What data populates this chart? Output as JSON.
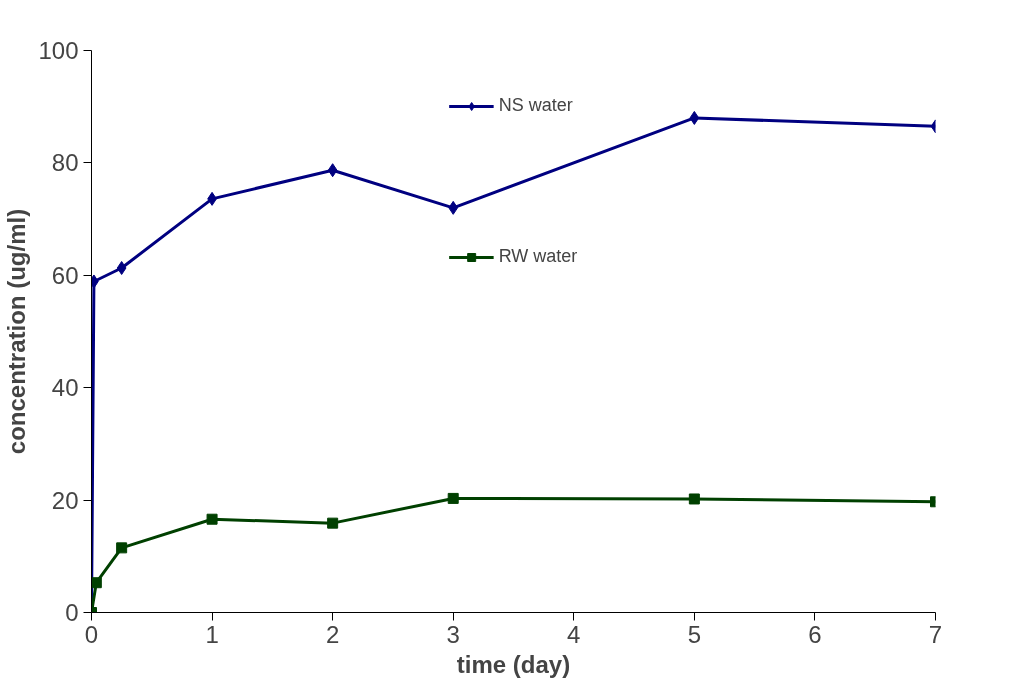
{
  "chart_data": {
    "type": "line",
    "xlabel": "time (day)",
    "ylabel": "concentration (ug/ml)",
    "xlim": [
      0,
      7
    ],
    "ylim": [
      0,
      100
    ],
    "xticks": [
      0,
      1,
      2,
      3,
      4,
      5,
      6,
      7
    ],
    "yticks": [
      0,
      20,
      40,
      60,
      80,
      100
    ],
    "grid": false,
    "legend": "top",
    "line_style": "solid",
    "series": [
      {
        "name": "NS water",
        "color": "#000080",
        "marker": "diamond",
        "x": [
          0,
          0.02,
          0.25,
          1,
          2,
          3,
          5,
          7
        ],
        "values": [
          0,
          58.9,
          61.3,
          73.6,
          78.7,
          72,
          88,
          86.5
        ]
      },
      {
        "name": "RW water",
        "color": "#004000",
        "marker": "square",
        "x": [
          0,
          0.04,
          0.25,
          1,
          2,
          3,
          5,
          7
        ],
        "values": [
          0,
          5.3,
          11.5,
          16.6,
          15.9,
          20.3,
          20.2,
          19.7
        ]
      }
    ]
  }
}
